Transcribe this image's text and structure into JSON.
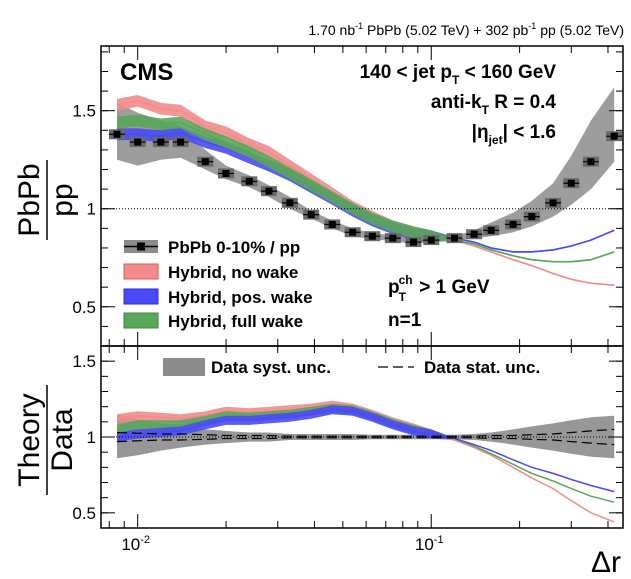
{
  "figure": {
    "header": "1.70 nb",
    "header_sup": "-1",
    "header_mid": " PbPb (5.02 TeV) + 302 pb",
    "header_sup2": "-1",
    "header_end": " pp (5.02 TeV)",
    "cms": "CMS",
    "label_jetpt_a": "140 < jet p",
    "label_jetpt_sub": "T",
    "label_jetpt_b": " < 160 GeV",
    "label_akt_a": "anti-k",
    "label_akt_sub": "T",
    "label_akt_b": " R = 0.4",
    "label_eta_a": "|η",
    "label_eta_sub": "jet",
    "label_eta_b": "| < 1.6",
    "label_ptch_a": "p",
    "label_ptch_sup": "ch",
    "label_ptch_sub": "T",
    "label_ptch_b": " > 1 GeV",
    "label_n": "n=1",
    "top_ylabel_num": "PbPb",
    "top_ylabel_den": "pp",
    "bottom_ylabel_num": "Theory",
    "bottom_ylabel_den": "Data",
    "xlabel": "Δr",
    "legend_top": [
      {
        "label": "PbPb 0-10% / pp",
        "color": "#000000"
      },
      {
        "label": "Hybrid, no wake",
        "color": "#f28b8b"
      },
      {
        "label": "Hybrid, pos. wake",
        "color": "#4a4af5"
      },
      {
        "label": "Hybrid, full wake",
        "color": "#5aa65a"
      }
    ],
    "legend_bottom": [
      {
        "label": "Data syst. unc.",
        "color": "#8c8c8c"
      },
      {
        "label": "Data stat. unc.",
        "color": "#000000"
      }
    ],
    "top_yticks": [
      "0.5",
      "1",
      "1.5"
    ],
    "bottom_yticks": [
      "0.5",
      "1",
      "1.5"
    ],
    "xticks": [
      {
        "base": "10",
        "exp": "-2"
      },
      {
        "base": "10",
        "exp": "-1"
      }
    ]
  },
  "chart_data": [
    {
      "type": "line",
      "panel": "top",
      "title": "PbPb / pp",
      "xscale": "log",
      "xlim": [
        0.0075,
        0.45
      ],
      "ylim": [
        0.3,
        1.83
      ],
      "ylabel": "PbPb/pp",
      "xlabel": "Δr",
      "x": [
        0.0085,
        0.01,
        0.012,
        0.014,
        0.017,
        0.02,
        0.024,
        0.028,
        0.033,
        0.039,
        0.046,
        0.054,
        0.063,
        0.074,
        0.087,
        0.1,
        0.12,
        0.14,
        0.16,
        0.19,
        0.22,
        0.26,
        0.3,
        0.35,
        0.42
      ],
      "series": [
        {
          "name": "PbPb 0-10% / pp",
          "color": "#000000",
          "values": [
            1.38,
            1.34,
            1.34,
            1.34,
            1.24,
            1.18,
            1.14,
            1.09,
            1.03,
            0.97,
            0.92,
            0.88,
            0.86,
            0.85,
            0.83,
            0.84,
            0.85,
            0.87,
            0.89,
            0.92,
            0.96,
            1.03,
            1.13,
            1.24,
            1.37
          ],
          "syst_low": [
            1.25,
            1.22,
            1.25,
            1.26,
            1.2,
            1.15,
            1.11,
            1.06,
            1.0,
            0.95,
            0.9,
            0.86,
            0.845,
            0.835,
            0.82,
            0.83,
            0.84,
            0.85,
            0.86,
            0.88,
            0.91,
            0.96,
            1.02,
            1.1,
            1.24
          ],
          "syst_high": [
            1.54,
            1.49,
            1.45,
            1.42,
            1.3,
            1.22,
            1.17,
            1.12,
            1.06,
            0.99,
            0.94,
            0.9,
            0.875,
            0.865,
            0.845,
            0.85,
            0.86,
            0.89,
            0.93,
            0.98,
            1.04,
            1.13,
            1.27,
            1.45,
            1.62
          ]
        },
        {
          "name": "Hybrid, no wake",
          "color": "#f28b8b",
          "values": [
            1.53,
            1.55,
            1.51,
            1.5,
            1.42,
            1.39,
            1.33,
            1.29,
            1.22,
            1.15,
            1.08,
            1.01,
            0.96,
            0.91,
            0.88,
            0.86,
            0.84,
            0.81,
            0.78,
            0.74,
            0.71,
            0.67,
            0.64,
            0.62,
            0.61
          ]
        },
        {
          "name": "Hybrid, pos. wake",
          "color": "#4a4af5",
          "values": [
            1.38,
            1.38,
            1.37,
            1.39,
            1.34,
            1.31,
            1.26,
            1.22,
            1.17,
            1.11,
            1.05,
            0.99,
            0.94,
            0.9,
            0.87,
            0.86,
            0.85,
            0.83,
            0.8,
            0.78,
            0.78,
            0.79,
            0.81,
            0.84,
            0.89
          ]
        },
        {
          "name": "Hybrid, full wake",
          "color": "#5aa65a",
          "values": [
            1.44,
            1.45,
            1.43,
            1.44,
            1.38,
            1.34,
            1.29,
            1.24,
            1.18,
            1.12,
            1.06,
            1.0,
            0.95,
            0.91,
            0.88,
            0.86,
            0.84,
            0.82,
            0.79,
            0.76,
            0.74,
            0.73,
            0.73,
            0.74,
            0.78
          ]
        }
      ]
    },
    {
      "type": "line",
      "panel": "bottom",
      "title": "Theory / Data",
      "xscale": "log",
      "xlim": [
        0.0075,
        0.45
      ],
      "ylim": [
        0.4,
        1.6
      ],
      "ylabel": "Theory/Data",
      "xlabel": "Δr",
      "x": [
        0.0085,
        0.01,
        0.012,
        0.014,
        0.017,
        0.02,
        0.024,
        0.028,
        0.033,
        0.039,
        0.046,
        0.054,
        0.063,
        0.074,
        0.087,
        0.1,
        0.12,
        0.14,
        0.16,
        0.19,
        0.22,
        0.26,
        0.3,
        0.35,
        0.42
      ],
      "series": [
        {
          "name": "Data syst. unc.",
          "color": "#8c8c8c",
          "syst_low": [
            0.86,
            0.88,
            0.91,
            0.93,
            0.95,
            0.96,
            0.97,
            0.97,
            0.98,
            0.98,
            0.98,
            0.98,
            0.985,
            0.985,
            0.985,
            0.985,
            0.985,
            0.98,
            0.97,
            0.95,
            0.93,
            0.91,
            0.89,
            0.87,
            0.86
          ],
          "syst_high": [
            1.14,
            1.12,
            1.09,
            1.07,
            1.05,
            1.04,
            1.03,
            1.03,
            1.02,
            1.02,
            1.02,
            1.02,
            1.015,
            1.015,
            1.015,
            1.015,
            1.015,
            1.02,
            1.03,
            1.05,
            1.07,
            1.09,
            1.11,
            1.13,
            1.14
          ]
        },
        {
          "name": "Data stat. unc.",
          "color": "#000000",
          "stat_high": [
            1.03,
            1.025,
            1.02,
            1.02,
            1.015,
            1.01,
            1.01,
            1.01,
            1.005,
            1.005,
            1.005,
            1.005,
            1.005,
            1.005,
            1.005,
            1.005,
            1.005,
            1.005,
            1.01,
            1.01,
            1.015,
            1.02,
            1.03,
            1.04,
            1.05
          ],
          "stat_low": [
            0.97,
            0.975,
            0.98,
            0.98,
            0.985,
            0.99,
            0.99,
            0.99,
            0.995,
            0.995,
            0.995,
            0.995,
            0.995,
            0.995,
            0.995,
            0.995,
            0.995,
            0.995,
            0.99,
            0.99,
            0.985,
            0.98,
            0.97,
            0.96,
            0.95
          ]
        },
        {
          "name": "Hybrid, no wake",
          "color": "#f28b8b",
          "values": [
            1.12,
            1.14,
            1.13,
            1.12,
            1.14,
            1.17,
            1.16,
            1.17,
            1.18,
            1.19,
            1.21,
            1.19,
            1.15,
            1.1,
            1.06,
            1.02,
            0.98,
            0.93,
            0.88,
            0.8,
            0.73,
            0.66,
            0.58,
            0.5,
            0.44
          ]
        },
        {
          "name": "Hybrid, pos. wake",
          "color": "#4a4af5",
          "values": [
            1.0,
            1.02,
            1.03,
            1.04,
            1.08,
            1.11,
            1.11,
            1.12,
            1.13,
            1.15,
            1.18,
            1.17,
            1.13,
            1.08,
            1.04,
            1.02,
            0.99,
            0.95,
            0.91,
            0.85,
            0.8,
            0.76,
            0.72,
            0.68,
            0.64
          ]
        },
        {
          "name": "Hybrid, full wake",
          "color": "#5aa65a",
          "values": [
            1.05,
            1.08,
            1.08,
            1.08,
            1.11,
            1.14,
            1.13,
            1.14,
            1.15,
            1.17,
            1.19,
            1.18,
            1.14,
            1.09,
            1.05,
            1.02,
            0.99,
            0.94,
            0.89,
            0.82,
            0.76,
            0.71,
            0.66,
            0.61,
            0.57
          ]
        }
      ]
    }
  ]
}
